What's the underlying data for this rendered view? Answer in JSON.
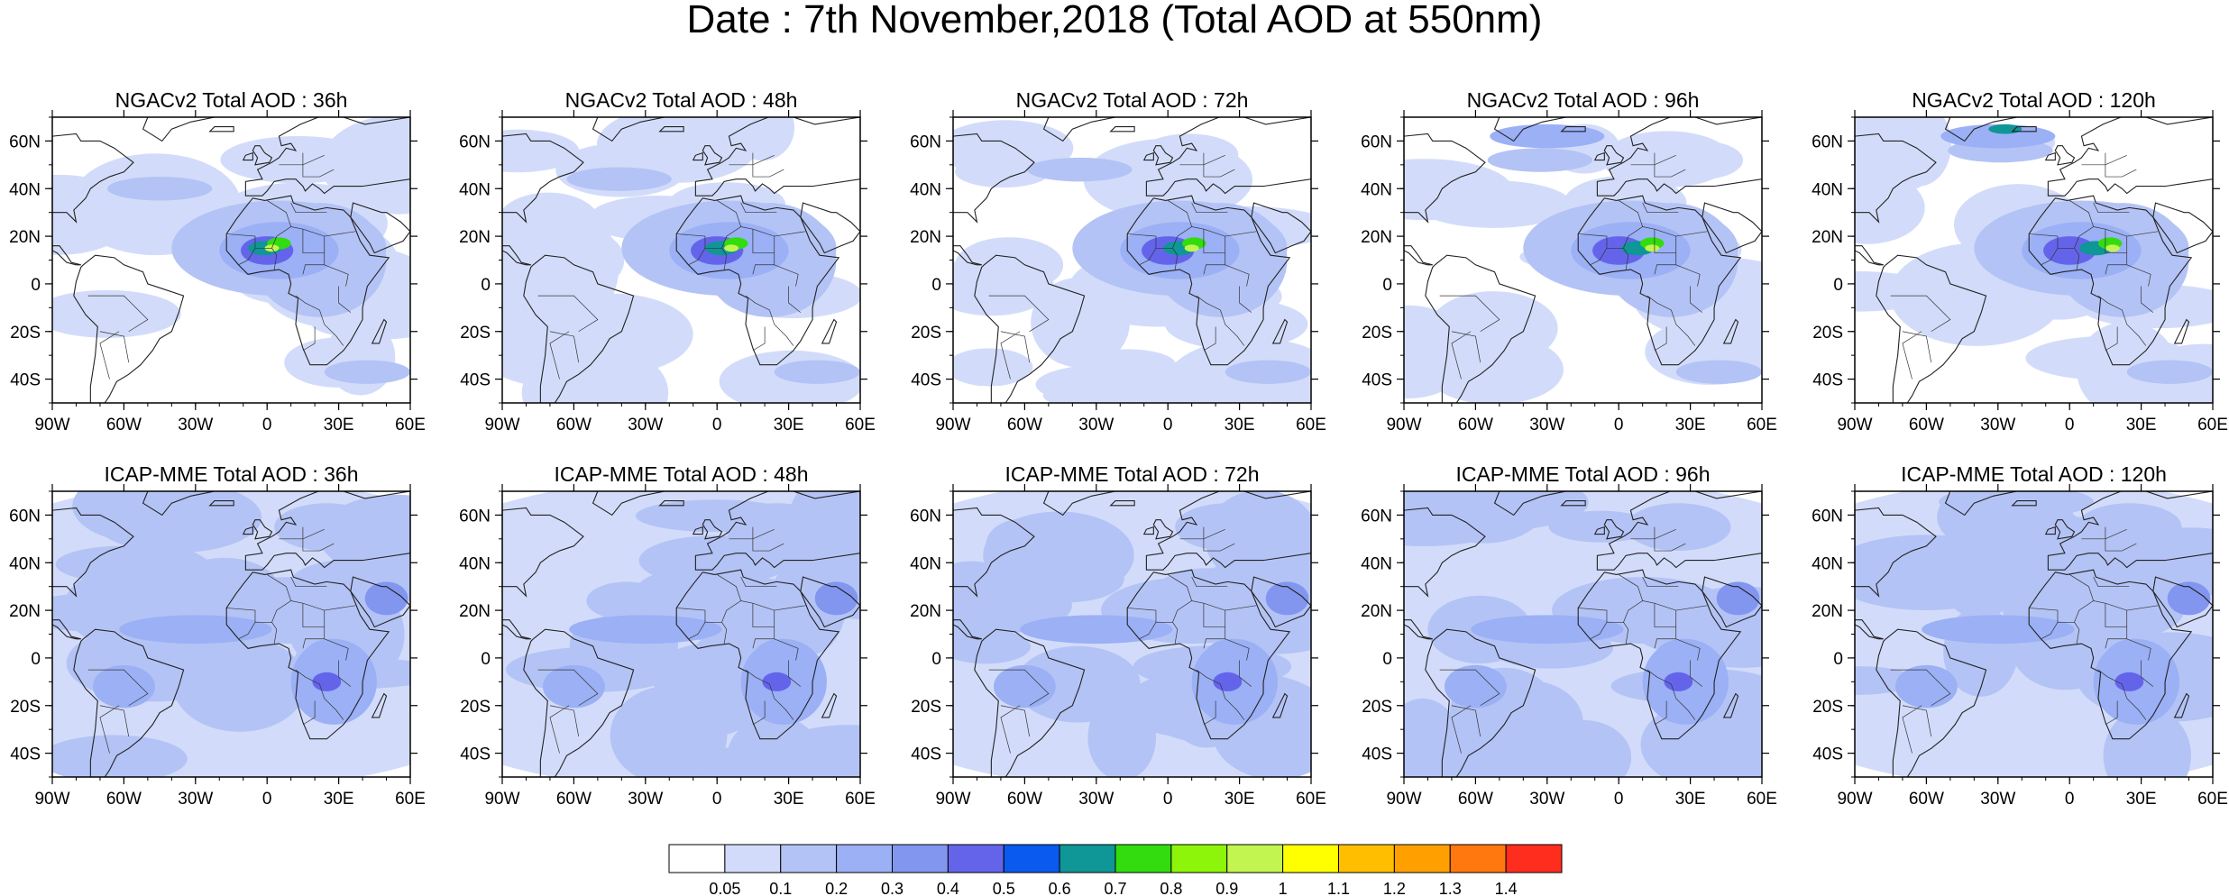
{
  "title": "Date : 7th November,2018 (Total AOD at 550nm)",
  "axes": {
    "lon_ticks": [
      "90W",
      "60W",
      "30W",
      "0",
      "30E",
      "60E"
    ],
    "lat_ticks": [
      "60N",
      "40N",
      "20N",
      "0",
      "20S",
      "40S"
    ],
    "lon_values": [
      -90,
      -60,
      -30,
      0,
      30,
      60
    ],
    "lat_values": [
      60,
      40,
      20,
      0,
      -20,
      -40
    ],
    "lon_range": [
      -90,
      60
    ],
    "lat_range": [
      -50,
      70
    ]
  },
  "panels": [
    {
      "title": "NGACv2 Total AOD : 36h"
    },
    {
      "title": "NGACv2 Total AOD : 48h"
    },
    {
      "title": "NGACv2 Total AOD : 72h"
    },
    {
      "title": "NGACv2 Total AOD : 96h"
    },
    {
      "title": "NGACv2 Total AOD : 120h"
    },
    {
      "title": "ICAP-MME Total AOD : 36h"
    },
    {
      "title": "ICAP-MME Total AOD : 48h"
    },
    {
      "title": "ICAP-MME Total AOD : 72h"
    },
    {
      "title": "ICAP-MME Total AOD : 96h"
    },
    {
      "title": "ICAP-MME Total AOD : 120h"
    }
  ],
  "colorbar": {
    "labels": [
      "0.05",
      "0.1",
      "0.2",
      "0.3",
      "0.4",
      "0.5",
      "0.6",
      "0.7",
      "0.8",
      "0.9",
      "1",
      "1.1",
      "1.2",
      "1.3",
      "1.4"
    ],
    "colors": [
      "#ffffff",
      "#d2dcfa",
      "#b4c3f5",
      "#9bb0f5",
      "#8296f0",
      "#6464eb",
      "#0a5af0",
      "#0f9696",
      "#32dc0f",
      "#8cf50a",
      "#c3f550",
      "#ffff00",
      "#ffbe00",
      "#ffa000",
      "#ff780f",
      "#ff2d1e"
    ]
  }
}
